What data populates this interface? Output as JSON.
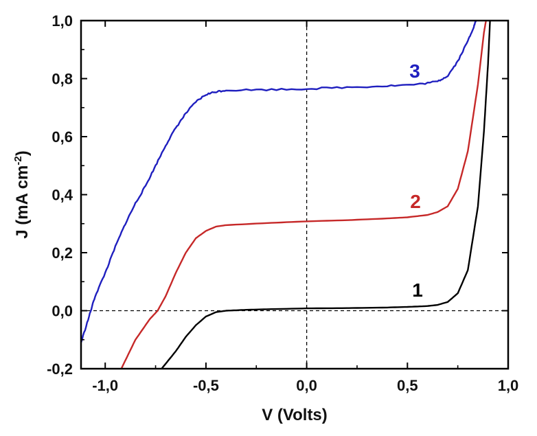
{
  "chart_data": {
    "type": "line",
    "title": "",
    "xlabel": "V  (Volts)",
    "ylabel": {
      "main": "J  (mA cm",
      "sup": "-2",
      "close": ")"
    },
    "xlim": [
      -1.12,
      1.0
    ],
    "ylim": [
      -0.2,
      1.0
    ],
    "xticks": [
      -1.0,
      -0.5,
      0.0,
      0.5,
      1.0
    ],
    "xtick_labels": [
      "-1,0",
      "-0,5",
      "0,0",
      "0,5",
      "1,0"
    ],
    "yticks": [
      -0.2,
      0.0,
      0.2,
      0.4,
      0.6,
      0.8,
      1.0
    ],
    "ytick_labels": [
      "-0,2",
      "0,0",
      "0,2",
      "0,4",
      "0,6",
      "0,8",
      "1,0"
    ],
    "grid": false,
    "reference_lines": {
      "x": 0.0,
      "y": 0.0,
      "style": "dashed"
    },
    "series": [
      {
        "name": "1",
        "label": "1",
        "color": "#000000",
        "points": [
          [
            -0.72,
            -0.2
          ],
          [
            -0.65,
            -0.14
          ],
          [
            -0.6,
            -0.09
          ],
          [
            -0.55,
            -0.05
          ],
          [
            -0.5,
            -0.02
          ],
          [
            -0.45,
            -0.005
          ],
          [
            -0.4,
            0.0
          ],
          [
            -0.3,
            0.003
          ],
          [
            -0.2,
            0.005
          ],
          [
            0.0,
            0.008
          ],
          [
            0.2,
            0.009
          ],
          [
            0.4,
            0.011
          ],
          [
            0.5,
            0.013
          ],
          [
            0.6,
            0.016
          ],
          [
            0.65,
            0.02
          ],
          [
            0.7,
            0.03
          ],
          [
            0.75,
            0.06
          ],
          [
            0.8,
            0.14
          ],
          [
            0.85,
            0.36
          ],
          [
            0.88,
            0.62
          ],
          [
            0.9,
            0.85
          ],
          [
            0.91,
            1.0
          ]
        ]
      },
      {
        "name": "2",
        "label": "2",
        "color": "#c62828",
        "points": [
          [
            -0.92,
            -0.2
          ],
          [
            -0.85,
            -0.1
          ],
          [
            -0.78,
            -0.03
          ],
          [
            -0.74,
            0.0
          ],
          [
            -0.7,
            0.05
          ],
          [
            -0.65,
            0.13
          ],
          [
            -0.6,
            0.2
          ],
          [
            -0.55,
            0.25
          ],
          [
            -0.5,
            0.275
          ],
          [
            -0.45,
            0.29
          ],
          [
            -0.4,
            0.295
          ],
          [
            -0.2,
            0.302
          ],
          [
            0.0,
            0.308
          ],
          [
            0.2,
            0.312
          ],
          [
            0.4,
            0.318
          ],
          [
            0.5,
            0.322
          ],
          [
            0.6,
            0.33
          ],
          [
            0.65,
            0.34
          ],
          [
            0.7,
            0.36
          ],
          [
            0.75,
            0.42
          ],
          [
            0.8,
            0.55
          ],
          [
            0.85,
            0.78
          ],
          [
            0.88,
            0.96
          ],
          [
            0.89,
            1.0
          ]
        ]
      },
      {
        "name": "3",
        "label": "3",
        "color": "#1f1fbf",
        "points": [
          [
            -1.12,
            -0.11
          ],
          [
            -1.08,
            -0.02
          ],
          [
            -1.05,
            0.05
          ],
          [
            -1.0,
            0.13
          ],
          [
            -0.95,
            0.22
          ],
          [
            -0.9,
            0.3
          ],
          [
            -0.85,
            0.37
          ],
          [
            -0.8,
            0.43
          ],
          [
            -0.75,
            0.5
          ],
          [
            -0.7,
            0.57
          ],
          [
            -0.65,
            0.63
          ],
          [
            -0.6,
            0.68
          ],
          [
            -0.55,
            0.72
          ],
          [
            -0.5,
            0.745
          ],
          [
            -0.45,
            0.755
          ],
          [
            -0.4,
            0.76
          ],
          [
            -0.2,
            0.762
          ],
          [
            0.0,
            0.765
          ],
          [
            0.2,
            0.77
          ],
          [
            0.4,
            0.775
          ],
          [
            0.55,
            0.78
          ],
          [
            0.65,
            0.79
          ],
          [
            0.7,
            0.81
          ],
          [
            0.75,
            0.86
          ],
          [
            0.8,
            0.93
          ],
          [
            0.83,
            0.98
          ],
          [
            0.84,
            1.0
          ]
        ],
        "noise": true
      }
    ]
  }
}
